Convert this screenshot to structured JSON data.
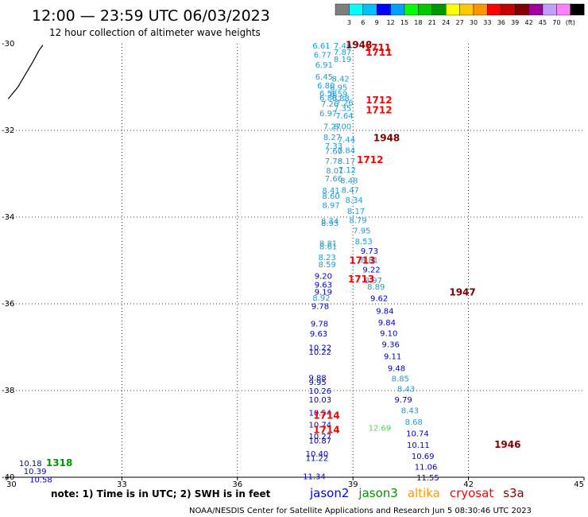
{
  "header": {
    "title": "12:00 — 23:59 UTC 06/03/2023",
    "subtitle": "12 hour collection of altimeter wave heights"
  },
  "colorbar": {
    "colors": [
      "#7f7f7f",
      "#00ffff",
      "#00bfff",
      "#0000ff",
      "#00a0ff",
      "#00ff00",
      "#00c800",
      "#009600",
      "#ffff00",
      "#ffc800",
      "#ff9600",
      "#ff0000",
      "#c80000",
      "#800000",
      "#a000a0",
      "#c0a0ff",
      "#ff80ff",
      "#000000"
    ],
    "labels": [
      "3",
      "6",
      "9",
      "12",
      "15",
      "18",
      "21",
      "24",
      "27",
      "30",
      "33",
      "36",
      "39",
      "42",
      "45",
      "70"
    ],
    "unit": "(ft)"
  },
  "footer": {
    "note": "note: 1) Time is in UTC; 2) SWH is in feet",
    "missions": [
      {
        "name": "jason2",
        "color": "#0000ff"
      },
      {
        "name": "jason3",
        "color": "#009600"
      },
      {
        "name": "altika",
        "color": "#ff9600"
      },
      {
        "name": "cryosat",
        "color": "#ff0000"
      },
      {
        "name": "s3a",
        "color": "#800000"
      }
    ],
    "credit": "NOAA/NESDIS Center for Satellite Applications and Research   Jun  5 08:30:46 UTC 2023"
  },
  "chart_data": {
    "type": "scatter",
    "title": "12:00 — 23:59 UTC 06/03/2023",
    "subtitle": "12 hour collection of altimeter wave heights",
    "x_ticks": [
      30,
      33,
      36,
      39,
      42,
      45
    ],
    "y_ticks": [
      -30,
      -32,
      -34,
      -36,
      -38,
      -40
    ],
    "xlim": [
      30,
      45
    ],
    "ylim": [
      -40,
      -30
    ],
    "grid": true,
    "coastline": [
      [
        30.05,
        -31.27
      ],
      [
        30.3,
        -31.0
      ],
      [
        30.5,
        -30.7
      ],
      [
        30.7,
        -30.4
      ],
      [
        30.85,
        -30.15
      ],
      [
        30.95,
        -30.03
      ]
    ],
    "time_labels": [
      {
        "text": "1948",
        "x": 38.81,
        "y": -30.03,
        "color": "#800000"
      },
      {
        "text": "1711",
        "x": 39.3,
        "y": -30.09,
        "color": "#ff0000"
      },
      {
        "text": "1711",
        "x": 39.33,
        "y": -30.2,
        "color": "#ff0000"
      },
      {
        "text": "1712",
        "x": 39.33,
        "y": -31.3,
        "color": "#ff0000"
      },
      {
        "text": "1712",
        "x": 39.33,
        "y": -31.53,
        "color": "#ff0000"
      },
      {
        "text": "1948",
        "x": 39.53,
        "y": -32.17,
        "color": "#800000"
      },
      {
        "text": "1712",
        "x": 39.1,
        "y": -32.68,
        "color": "#ff0000"
      },
      {
        "text": "1713",
        "x": 38.9,
        "y": -35.0,
        "color": "#ff0000"
      },
      {
        "text": "1713",
        "x": 38.87,
        "y": -35.43,
        "color": "#ff0000"
      },
      {
        "text": "1947",
        "x": 41.5,
        "y": -35.73,
        "color": "#800000"
      },
      {
        "text": "1714",
        "x": 37.97,
        "y": -38.58,
        "color": "#ff0000"
      },
      {
        "text": "1714",
        "x": 37.97,
        "y": -38.91,
        "color": "#ff0000"
      },
      {
        "text": "1946",
        "x": 42.67,
        "y": -39.25,
        "color": "#800000"
      },
      {
        "text": "1318",
        "x": 31.03,
        "y": -39.67,
        "color": "#009600"
      }
    ],
    "series": [
      {
        "points": [
          {
            "x": 37.95,
            "y": -30.04,
            "v": "6.61"
          },
          {
            "x": 37.98,
            "y": -30.25,
            "v": "6.77"
          },
          {
            "x": 38.02,
            "y": -30.48,
            "v": "6.91"
          },
          {
            "x": 38.02,
            "y": -30.75,
            "v": "6.45"
          },
          {
            "x": 38.07,
            "y": -30.95,
            "v": "6.80"
          },
          {
            "x": 38.13,
            "y": -31.14,
            "v": "6.58"
          },
          {
            "x": 38.13,
            "y": -31.24,
            "v": "6.88"
          },
          {
            "x": 38.17,
            "y": -31.38,
            "v": "7.26"
          },
          {
            "x": 38.13,
            "y": -31.6,
            "v": "6.97"
          },
          {
            "x": 38.23,
            "y": -31.9,
            "v": "7.27"
          },
          {
            "x": 38.23,
            "y": -32.15,
            "v": "8.27"
          },
          {
            "x": 38.27,
            "y": -32.35,
            "v": "7.33"
          },
          {
            "x": 38.27,
            "y": -32.47,
            "v": "7.60"
          },
          {
            "x": 38.27,
            "y": -32.7,
            "v": "7.78"
          },
          {
            "x": 38.3,
            "y": -32.92,
            "v": "8.01"
          },
          {
            "x": 38.27,
            "y": -33.1,
            "v": "7.66"
          },
          {
            "x": 38.2,
            "y": -33.38,
            "v": "8.41"
          },
          {
            "x": 38.2,
            "y": -33.5,
            "v": "8.60"
          },
          {
            "x": 38.2,
            "y": -33.72,
            "v": "8.97"
          },
          {
            "x": 38.17,
            "y": -34.08,
            "v": "8.74"
          },
          {
            "x": 38.17,
            "y": -34.13,
            "v": "8.93"
          },
          {
            "x": 38.13,
            "y": -34.6,
            "v": "8.81"
          },
          {
            "x": 38.13,
            "y": -34.67,
            "v": "8.61"
          },
          {
            "x": 38.1,
            "y": -34.92,
            "v": "8.23"
          },
          {
            "x": 38.1,
            "y": -35.08,
            "v": "8.59"
          },
          {
            "x": 38.5,
            "y": -30.04,
            "v": "7.49"
          },
          {
            "x": 38.5,
            "y": -30.18,
            "v": "7.87"
          },
          {
            "x": 38.5,
            "y": -30.35,
            "v": "8.19"
          },
          {
            "x": 38.45,
            "y": -30.8,
            "v": "8.42"
          },
          {
            "x": 38.4,
            "y": -31.0,
            "v": "6.95"
          },
          {
            "x": 38.4,
            "y": -31.15,
            "v": "8.59"
          },
          {
            "x": 38.45,
            "y": -31.25,
            "v": "6.88"
          },
          {
            "x": 38.55,
            "y": -31.35,
            "v": "7.26"
          },
          {
            "x": 38.5,
            "y": -31.48,
            "v": "7.35"
          },
          {
            "x": 38.55,
            "y": -31.65,
            "v": "7.64"
          },
          {
            "x": 38.5,
            "y": -31.9,
            "v": "8.00"
          },
          {
            "x": 38.6,
            "y": -32.2,
            "v": "7.44"
          },
          {
            "x": 38.6,
            "y": -32.45,
            "v": "7.84"
          },
          {
            "x": 38.6,
            "y": -32.7,
            "v": "8.17"
          },
          {
            "x": 38.62,
            "y": -32.9,
            "v": "7.12"
          },
          {
            "x": 38.67,
            "y": -33.15,
            "v": "8.48"
          },
          {
            "x": 38.7,
            "y": -33.37,
            "v": "8.47"
          },
          {
            "x": 38.8,
            "y": -33.6,
            "v": "8.34"
          },
          {
            "x": 38.85,
            "y": -33.85,
            "v": "8.17"
          },
          {
            "x": 38.9,
            "y": -34.06,
            "v": "8.79"
          },
          {
            "x": 39.0,
            "y": -34.3,
            "v": "7.95"
          },
          {
            "x": 39.05,
            "y": -34.55,
            "v": "8.53"
          },
          {
            "x": 39.2,
            "y": -34.98,
            "v": "8.81"
          },
          {
            "x": 39.37,
            "y": -35.6,
            "v": "8.89"
          },
          {
            "x": 39.4,
            "y": -38.85,
            "v": "12.69",
            "c": "#44dd44"
          }
        ],
        "color": "#1e9bd7"
      },
      {
        "points": [
          {
            "x": 39.2,
            "y": -34.77,
            "v": "9.73"
          },
          {
            "x": 39.25,
            "y": -35.2,
            "v": "9.22"
          },
          {
            "x": 39.3,
            "y": -35.45,
            "v": "8.97",
            "c": "#1e9bd7"
          },
          {
            "x": 39.45,
            "y": -35.86,
            "v": "9.62"
          },
          {
            "x": 39.6,
            "y": -36.16,
            "v": "9.84"
          },
          {
            "x": 39.65,
            "y": -36.42,
            "v": "9.84"
          },
          {
            "x": 39.7,
            "y": -36.67,
            "v": "9.10"
          },
          {
            "x": 39.75,
            "y": -36.93,
            "v": "9.36"
          },
          {
            "x": 39.8,
            "y": -37.2,
            "v": "9.11"
          },
          {
            "x": 39.9,
            "y": -37.48,
            "v": "9.48"
          },
          {
            "x": 40.0,
            "y": -37.72,
            "v": "8.85",
            "c": "#1e9bd7"
          },
          {
            "x": 40.15,
            "y": -37.95,
            "v": "8.43",
            "c": "#1e9bd7"
          },
          {
            "x": 40.08,
            "y": -38.2,
            "v": "9.79"
          },
          {
            "x": 40.25,
            "y": -38.45,
            "v": "8.43",
            "c": "#1e9bd7"
          },
          {
            "x": 40.35,
            "y": -38.72,
            "v": "8.68",
            "c": "#1e9bd7"
          },
          {
            "x": 40.38,
            "y": -38.98,
            "v": "10.74"
          },
          {
            "x": 40.4,
            "y": -39.25,
            "v": "10.11"
          },
          {
            "x": 40.52,
            "y": -39.5,
            "v": "10.69"
          },
          {
            "x": 40.6,
            "y": -39.75,
            "v": "11.06"
          },
          {
            "x": 40.65,
            "y": -40.0,
            "v": "11.55"
          },
          {
            "x": 38.0,
            "y": -35.35,
            "v": "9.20"
          },
          {
            "x": 38.0,
            "y": -35.55,
            "v": "9.63"
          },
          {
            "x": 38.0,
            "y": -35.72,
            "v": "9.19"
          },
          {
            "x": 37.95,
            "y": -35.85,
            "v": "8.92",
            "c": "#1e9bd7"
          },
          {
            "x": 37.92,
            "y": -36.05,
            "v": "9.78"
          },
          {
            "x": 37.9,
            "y": -36.45,
            "v": "9.78"
          },
          {
            "x": 37.88,
            "y": -36.68,
            "v": "9.63"
          },
          {
            "x": 37.85,
            "y": -37.0,
            "v": "10.22"
          },
          {
            "x": 37.85,
            "y": -37.1,
            "v": "10.22"
          },
          {
            "x": 37.85,
            "y": -37.7,
            "v": "9.88"
          },
          {
            "x": 37.85,
            "y": -37.8,
            "v": "9.95"
          },
          {
            "x": 37.85,
            "y": -38.0,
            "v": "10.26"
          },
          {
            "x": 37.85,
            "y": -38.2,
            "v": "10.03"
          },
          {
            "x": 37.85,
            "y": -38.5,
            "v": "10.54"
          },
          {
            "x": 37.85,
            "y": -38.78,
            "v": "10.74"
          },
          {
            "x": 37.85,
            "y": -39.05,
            "v": "10.27"
          },
          {
            "x": 37.85,
            "y": -39.15,
            "v": "10.87"
          },
          {
            "x": 37.77,
            "y": -39.45,
            "v": "10.40"
          },
          {
            "x": 37.77,
            "y": -39.55,
            "v": "11.22"
          },
          {
            "x": 37.7,
            "y": -39.97,
            "v": "11.34"
          },
          {
            "x": 30.33,
            "y": -39.67,
            "v": "10.18"
          },
          {
            "x": 30.45,
            "y": -39.85,
            "v": "10.39"
          },
          {
            "x": 30.6,
            "y": -40.05,
            "v": "10.58"
          }
        ],
        "color": "#0000c8"
      }
    ]
  }
}
